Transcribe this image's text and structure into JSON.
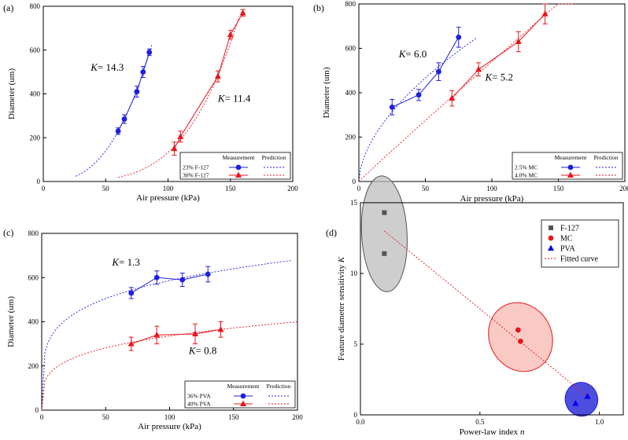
{
  "colors": {
    "blue": "#1f1fe0",
    "red": "#e8151b",
    "gray": "#555555",
    "redfill": "#f7b8b0",
    "bluefill": "#2f2fd8",
    "grayfill": "#bdbdbd"
  },
  "chart_data": [
    {
      "panel": "(a)",
      "type": "scatter",
      "xlabel": "Air pressure (kPa)",
      "ylabel": "Diameter (um)",
      "xlim": [
        0,
        200
      ],
      "ylim": [
        0,
        800
      ],
      "xticks": [
        0,
        50,
        100,
        150,
        200
      ],
      "yticks": [
        0,
        200,
        400,
        600,
        800
      ],
      "legend": {
        "header_measurement": "Measurement",
        "header_prediction": "Prediction",
        "position": "bottom-right"
      },
      "annotations": [
        {
          "k": "K",
          "text": "= 14.3",
          "x": 38,
          "y": 505
        },
        {
          "k": "K",
          "text": "= 11.4",
          "x": 140,
          "y": 365
        }
      ],
      "series": [
        {
          "name": "23% F-127",
          "color": "blue",
          "marker": "circle",
          "x": [
            60,
            65,
            75,
            80,
            85
          ],
          "y": [
            230,
            285,
            410,
            500,
            590
          ],
          "err": [
            15,
            20,
            25,
            25,
            15
          ],
          "prediction": {
            "type": "power",
            "K": 14.3,
            "x0": 26,
            "x1": 87
          }
        },
        {
          "name": "30% F-127",
          "color": "red",
          "marker": "triangle",
          "x": [
            105,
            110,
            140,
            150,
            160
          ],
          "y": [
            150,
            205,
            480,
            670,
            770
          ],
          "err": [
            30,
            25,
            25,
            20,
            15
          ],
          "prediction": {
            "type": "power",
            "K": 11.4,
            "x0": 60,
            "x1": 157
          }
        }
      ]
    },
    {
      "panel": "(b)",
      "type": "scatter",
      "xlabel": "Air pressure (kPa)",
      "ylabel": "Diameter (um)",
      "xlim": [
        0,
        200
      ],
      "ylim": [
        0,
        800
      ],
      "xticks": [
        0,
        50,
        100,
        150,
        200
      ],
      "yticks": [
        0,
        200,
        400,
        600,
        800
      ],
      "legend": {
        "header_measurement": "Measurement",
        "header_prediction": "Prediction",
        "position": "bottom-right"
      },
      "annotations": [
        {
          "k": "K",
          "text": "= 6.0",
          "x": 30,
          "y": 560
        },
        {
          "k": "K",
          "text": "= 5.2",
          "x": 95,
          "y": 455
        }
      ],
      "series": [
        {
          "name": "2.5% MC",
          "color": "blue",
          "marker": "circle",
          "x": [
            25,
            45,
            60,
            75
          ],
          "y": [
            335,
            390,
            495,
            650
          ],
          "err": [
            35,
            25,
            40,
            45
          ],
          "prediction": {
            "type": "power",
            "K": 6.0,
            "x0": 0,
            "x1": 88
          }
        },
        {
          "name": "4.0% MC",
          "color": "red",
          "marker": "triangle",
          "x": [
            70,
            90,
            120,
            140
          ],
          "y": [
            375,
            505,
            630,
            755
          ],
          "err": [
            35,
            30,
            45,
            45
          ],
          "prediction": {
            "type": "power",
            "K": 5.2,
            "x0": 0,
            "x1": 162
          }
        }
      ]
    },
    {
      "panel": "(c)",
      "type": "scatter",
      "xlabel": "Air pressure (kPa)",
      "ylabel": "Diameter (um)",
      "xlim": [
        0,
        200
      ],
      "ylim": [
        0,
        800
      ],
      "xticks": [
        0,
        50,
        100,
        150,
        200
      ],
      "yticks": [
        0,
        200,
        400,
        600,
        800
      ],
      "legend": {
        "header_measurement": "Measurement",
        "header_prediction": "Prediction",
        "position": "bottom-right"
      },
      "annotations": [
        {
          "k": "K",
          "text": "= 1.3",
          "x": 55,
          "y": 655
        },
        {
          "k": "K",
          "text": "= 0.8",
          "x": 115,
          "y": 255
        }
      ],
      "series": [
        {
          "name": "36% PVA",
          "color": "blue",
          "marker": "circle",
          "x": [
            70,
            90,
            110,
            130
          ],
          "y": [
            530,
            600,
            590,
            615
          ],
          "err": [
            25,
            30,
            30,
            35
          ],
          "prediction": {
            "type": "power",
            "K": 1.3,
            "x0": 0,
            "x1": 195
          }
        },
        {
          "name": "40% PVA",
          "color": "red",
          "marker": "triangle",
          "x": [
            70,
            90,
            120,
            140
          ],
          "y": [
            300,
            340,
            345,
            365
          ],
          "err": [
            30,
            40,
            45,
            35
          ],
          "prediction": {
            "type": "power",
            "K": 0.8,
            "x0": 0,
            "x1": 200
          }
        }
      ]
    },
    {
      "panel": "(d)",
      "type": "scatter",
      "xlabel": "Power-law index ",
      "xlabel_italic": "n",
      "ylabel": "Feature diameter sensitivity ",
      "ylabel_italic": "K",
      "xlim": [
        0,
        1.1
      ],
      "ylim": [
        0,
        15
      ],
      "xticks": [
        0.0,
        0.5,
        1.0
      ],
      "xtick_labels": [
        "0.0",
        "0.5",
        "1.0"
      ],
      "yticks": [
        0,
        5,
        10,
        15
      ],
      "legend": {
        "position": "top-right"
      },
      "series": [
        {
          "name": "F-127",
          "color": "gray",
          "marker": "square",
          "x": [
            0.1,
            0.1
          ],
          "y": [
            14.3,
            11.4
          ]
        },
        {
          "name": "MC",
          "color": "red",
          "marker": "circle",
          "x": [
            0.66,
            0.67
          ],
          "y": [
            6.0,
            5.2
          ]
        },
        {
          "name": "PVA",
          "color": "blue",
          "marker": "triangle",
          "x": [
            0.9,
            0.95
          ],
          "y": [
            0.8,
            1.3
          ]
        }
      ],
      "fitted_curve": {
        "name": "Fitted curve",
        "x0": 0.1,
        "y0": 13.0,
        "x1": 0.95,
        "y1": 1.3
      },
      "ellipses": [
        {
          "group": "F-127",
          "cx": 0.1,
          "cy": 12.8,
          "rx": 0.095,
          "ry": 4.1,
          "rot": 3,
          "fill": "grayfill",
          "stroke": "gray"
        },
        {
          "group": "MC",
          "cx": 0.67,
          "cy": 5.5,
          "rx": 0.13,
          "ry": 2.5,
          "rot": 28,
          "fill": "redfill",
          "stroke": "red"
        },
        {
          "group": "PVA",
          "cx": 0.925,
          "cy": 1.1,
          "rx": 0.068,
          "ry": 1.2,
          "rot": 15,
          "fill": "bluefill",
          "stroke": "blue"
        }
      ]
    }
  ]
}
